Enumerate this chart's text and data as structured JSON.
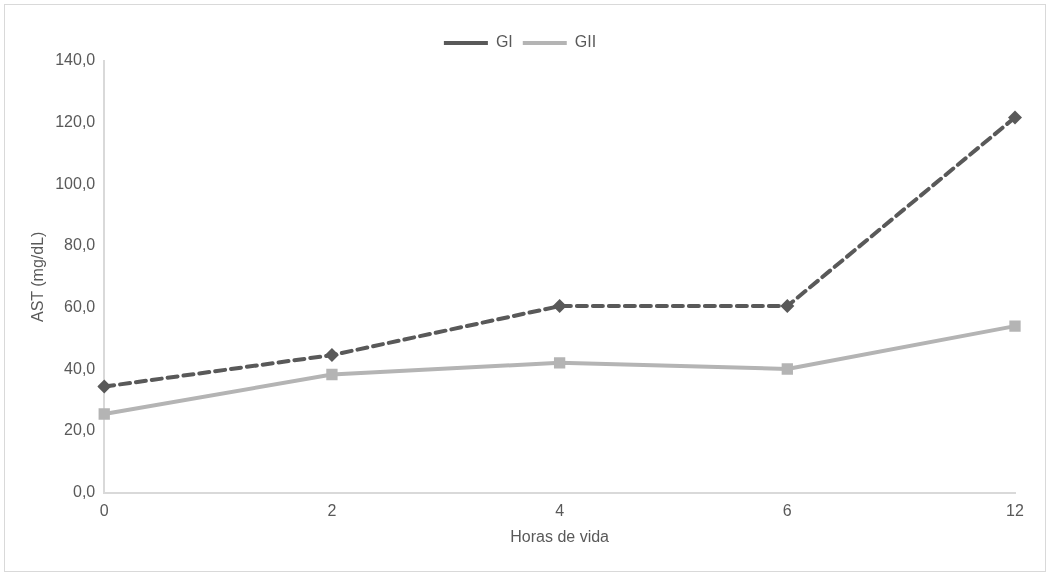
{
  "chart_data": {
    "type": "line",
    "xlabel": "Horas de vida",
    "ylabel": "AST (mg/dL)",
    "categories": [
      "0",
      "2",
      "4",
      "6",
      "12"
    ],
    "series": [
      {
        "name": "GI",
        "color": "#595959",
        "marker": "diamond",
        "line_style": "dashed",
        "values": [
          34.4,
          44.6,
          60.5,
          60.5,
          121.7
        ]
      },
      {
        "name": "GII",
        "color": "#b4b4b4",
        "marker": "square",
        "line_style": "solid",
        "values": [
          25.5,
          38.3,
          42.1,
          40.1,
          54.0
        ]
      }
    ],
    "ylim": [
      0,
      140
    ],
    "yticks": [
      {
        "value": 0,
        "label": "0,0"
      },
      {
        "value": 20,
        "label": "20,0"
      },
      {
        "value": 40,
        "label": "40,0"
      },
      {
        "value": 60,
        "label": "60,0"
      },
      {
        "value": 80,
        "label": "80,0"
      },
      {
        "value": 100,
        "label": "100,0"
      },
      {
        "value": 120,
        "label": "120,0"
      },
      {
        "value": 140,
        "label": "140,0"
      }
    ],
    "grid": false,
    "legend": "top"
  }
}
